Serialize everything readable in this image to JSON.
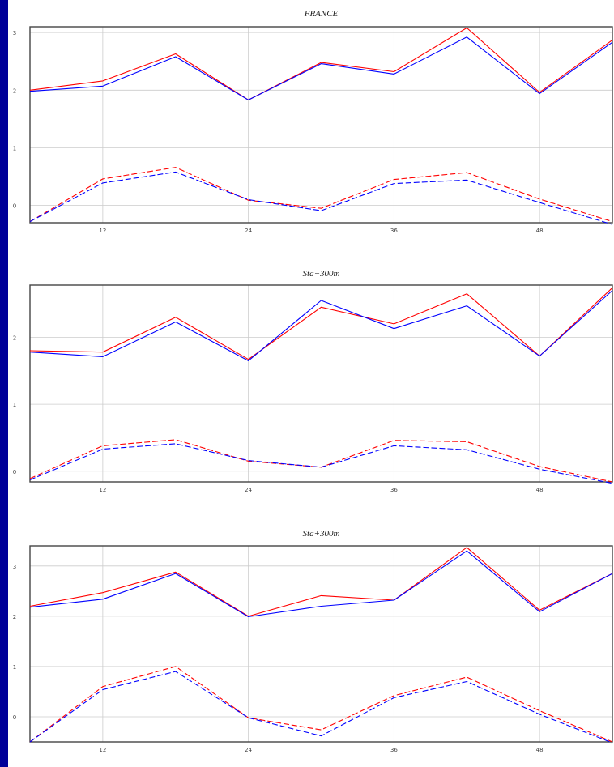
{
  "colors": {
    "background": "#000099",
    "red": "#ff0000",
    "blue": "#0000ff",
    "grid": "#cccccc",
    "frame": "#444444"
  },
  "chart_data": [
    {
      "type": "line",
      "title": "FRANCE",
      "grid": true,
      "x": [
        6,
        12,
        18,
        24,
        30,
        36,
        42,
        48,
        54
      ],
      "xticks": [
        "12",
        "24",
        "36",
        "48"
      ],
      "xtick_values": [
        12,
        24,
        36,
        48
      ],
      "yticks": [
        "0",
        "1",
        "2",
        "3"
      ],
      "ylim": [
        -0.3,
        3.1
      ],
      "xlim": [
        6,
        54
      ],
      "series": [
        {
          "color": "red",
          "dash": false,
          "values": [
            2.0,
            2.16,
            2.63,
            1.83,
            2.48,
            2.32,
            3.08,
            1.96,
            2.87
          ]
        },
        {
          "color": "blue",
          "dash": false,
          "values": [
            1.98,
            2.07,
            2.58,
            1.83,
            2.46,
            2.28,
            2.92,
            1.94,
            2.83
          ]
        },
        {
          "color": "red",
          "dash": true,
          "values": [
            -0.28,
            0.46,
            0.66,
            0.09,
            -0.05,
            0.45,
            0.57,
            0.11,
            -0.28
          ]
        },
        {
          "color": "blue",
          "dash": true,
          "values": [
            -0.28,
            0.39,
            0.58,
            0.1,
            -0.09,
            0.38,
            0.44,
            0.05,
            -0.33
          ]
        }
      ]
    },
    {
      "type": "line",
      "title": "Sta−300m",
      "grid": true,
      "x": [
        6,
        12,
        18,
        24,
        30,
        36,
        42,
        48,
        54
      ],
      "xticks": [
        "12",
        "24",
        "36",
        "48"
      ],
      "xtick_values": [
        12,
        24,
        36,
        48
      ],
      "yticks": [
        "0",
        "1",
        "2"
      ],
      "ylim": [
        -0.16,
        2.78
      ],
      "xlim": [
        6,
        54
      ],
      "series": [
        {
          "color": "red",
          "dash": false,
          "values": [
            1.8,
            1.78,
            2.3,
            1.67,
            2.45,
            2.2,
            2.65,
            1.72,
            2.74
          ]
        },
        {
          "color": "blue",
          "dash": false,
          "values": [
            1.78,
            1.71,
            2.23,
            1.65,
            2.55,
            2.13,
            2.47,
            1.72,
            2.7
          ]
        },
        {
          "color": "red",
          "dash": true,
          "values": [
            -0.11,
            0.38,
            0.47,
            0.15,
            0.06,
            0.46,
            0.44,
            0.07,
            -0.16
          ]
        },
        {
          "color": "blue",
          "dash": true,
          "values": [
            -0.13,
            0.33,
            0.41,
            0.16,
            0.06,
            0.38,
            0.32,
            0.03,
            -0.18
          ]
        }
      ]
    },
    {
      "type": "line",
      "title": "Sta+300m",
      "grid": true,
      "x": [
        6,
        12,
        18,
        24,
        30,
        36,
        42,
        48,
        54
      ],
      "xticks": [
        "12",
        "24",
        "36",
        "48"
      ],
      "xtick_values": [
        12,
        24,
        36,
        48
      ],
      "yticks": [
        "0",
        "1",
        "2",
        "3"
      ],
      "ylim": [
        -0.5,
        3.4
      ],
      "xlim": [
        6,
        54
      ],
      "series": [
        {
          "color": "red",
          "dash": false,
          "values": [
            2.2,
            2.47,
            2.88,
            2.0,
            2.41,
            2.32,
            3.37,
            2.12,
            2.85
          ]
        },
        {
          "color": "blue",
          "dash": false,
          "values": [
            2.18,
            2.34,
            2.85,
            1.99,
            2.2,
            2.32,
            3.3,
            2.09,
            2.85
          ]
        },
        {
          "color": "red",
          "dash": true,
          "values": [
            -0.5,
            0.6,
            1.0,
            -0.02,
            -0.26,
            0.42,
            0.79,
            0.12,
            -0.5
          ]
        },
        {
          "color": "blue",
          "dash": true,
          "values": [
            -0.5,
            0.54,
            0.9,
            -0.02,
            -0.38,
            0.38,
            0.7,
            0.05,
            -0.52
          ]
        }
      ]
    }
  ]
}
